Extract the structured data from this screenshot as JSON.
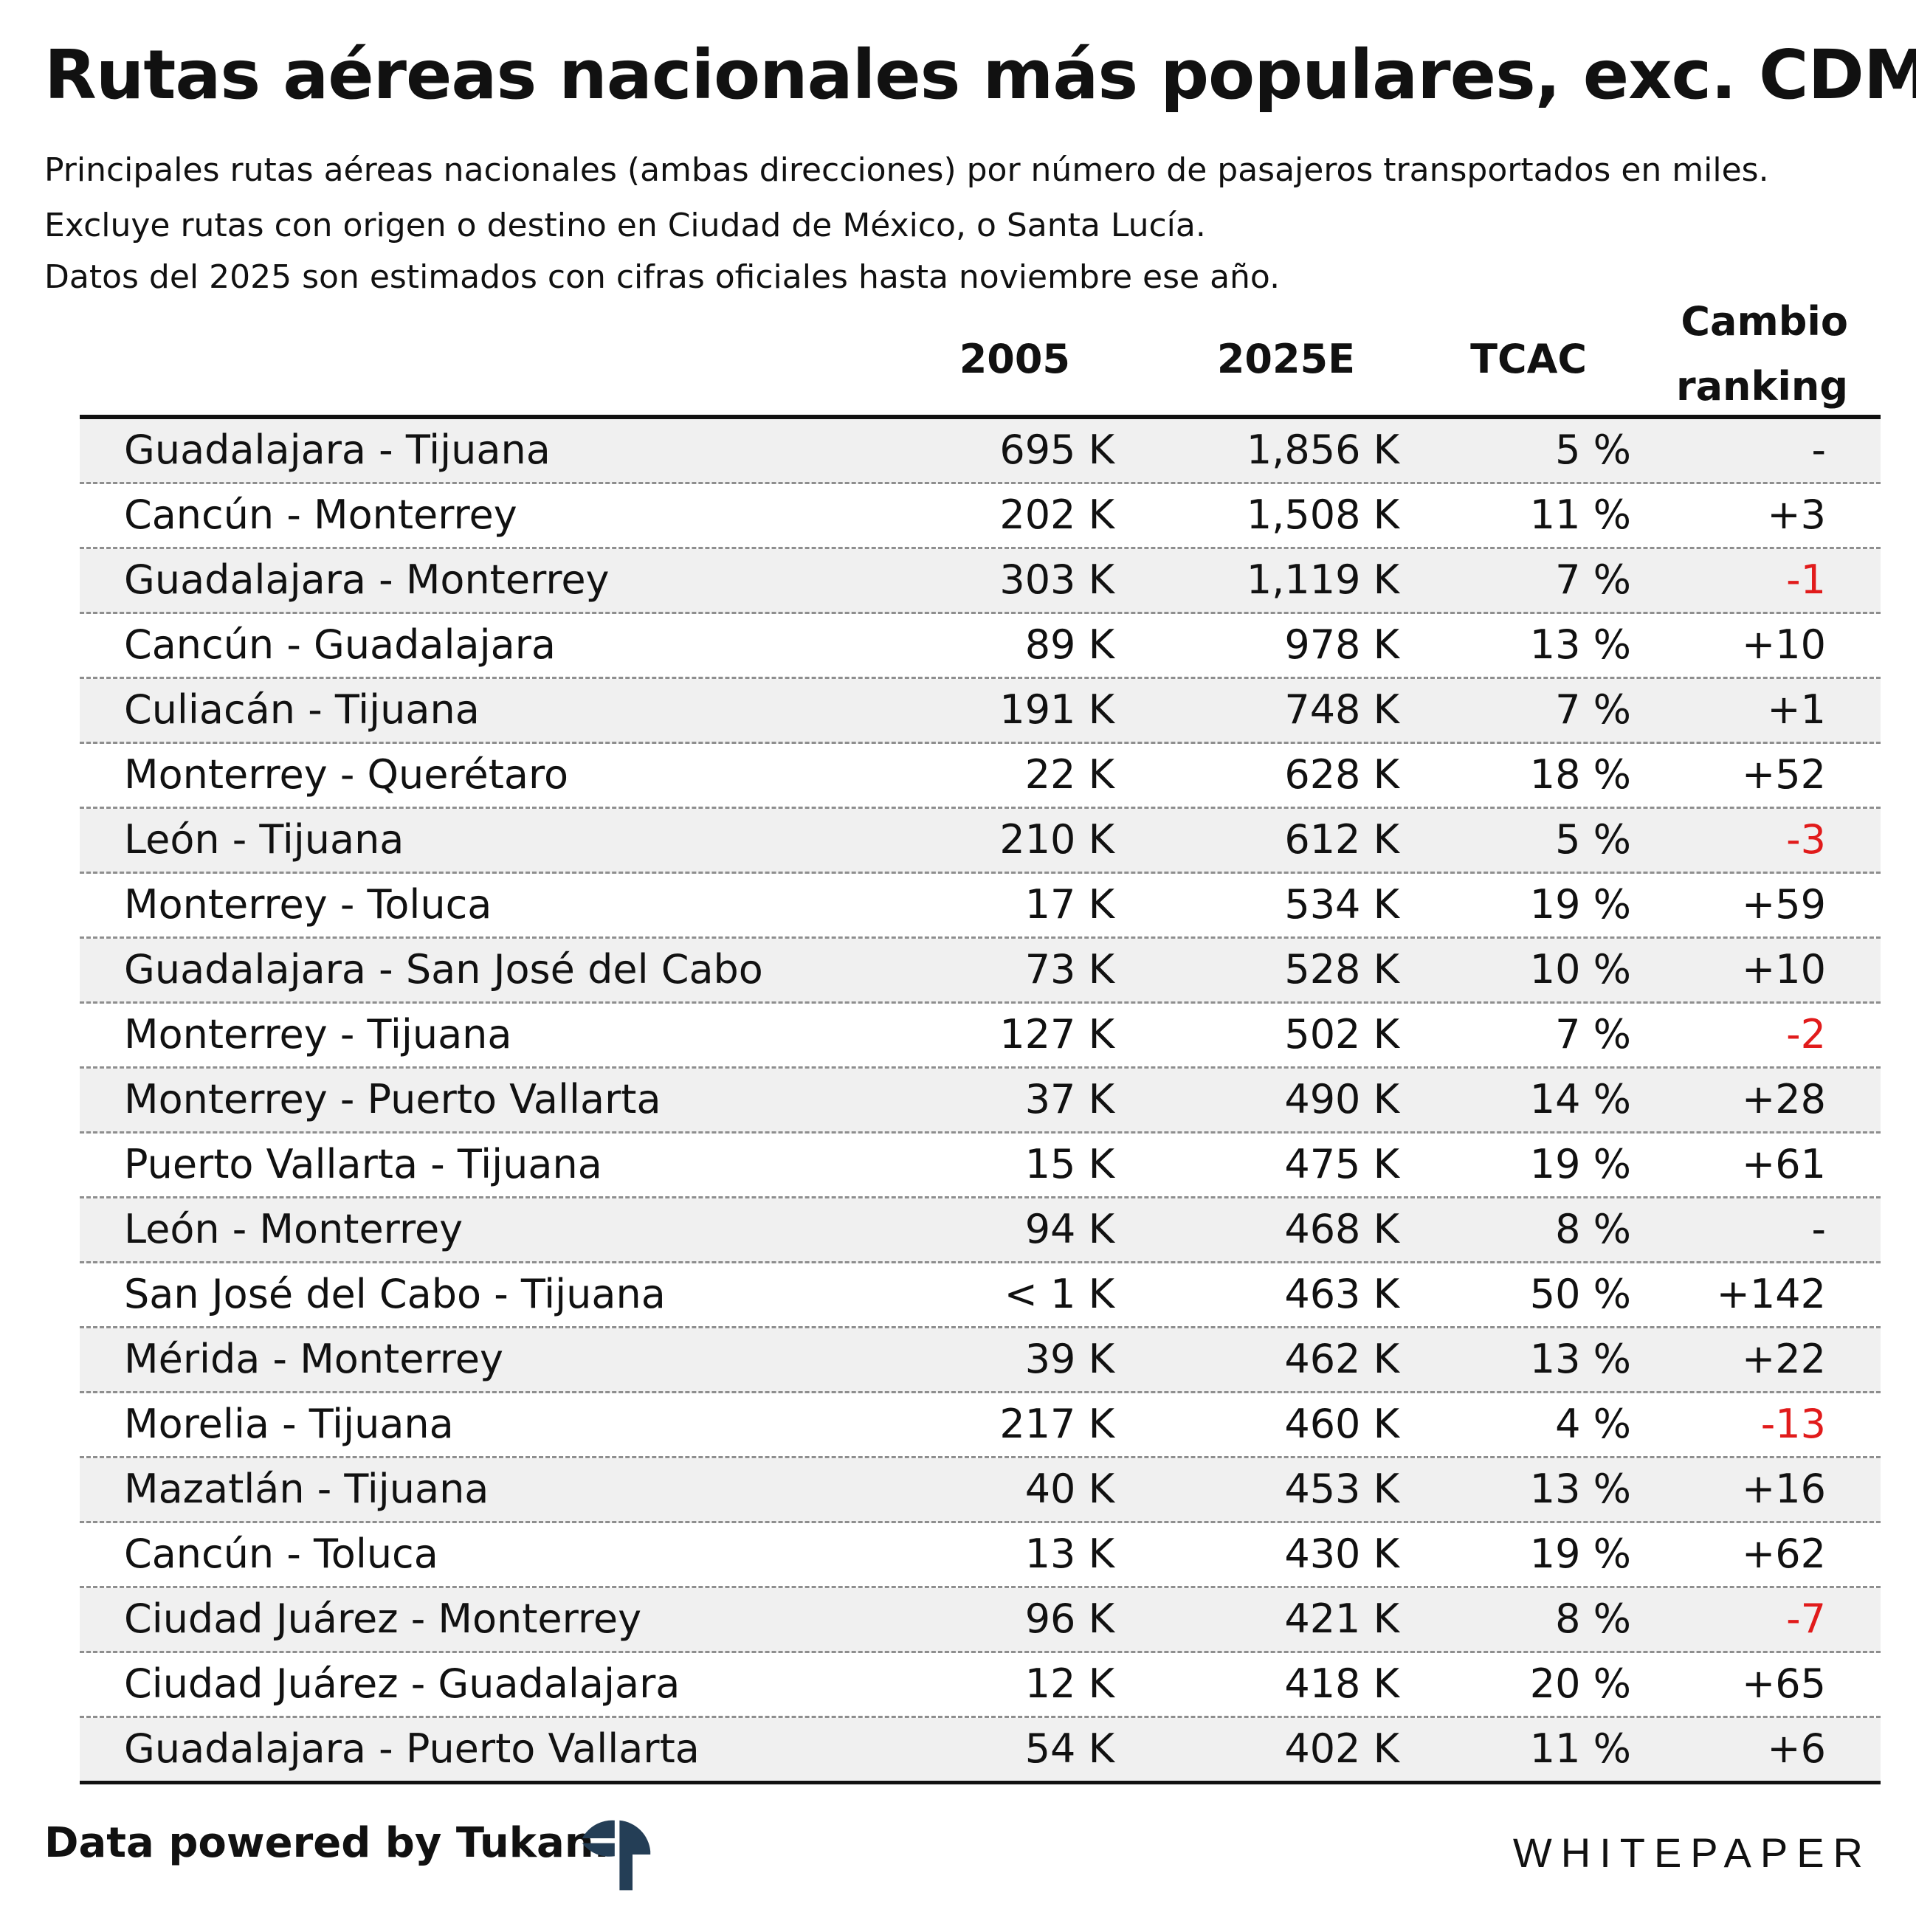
{
  "colors": {
    "negative": "#e11b1b",
    "text": "#111111",
    "shade": "#f0f0f0"
  },
  "chart_data": {
    "type": "table",
    "title": "Rutas aéreas nacionales más populares, exc. CDMX",
    "subtitle": [
      "Principales rutas aéreas nacionales (ambas direcciones) por número de pasajeros transportados en miles.",
      "Excluye rutas con origen o destino en Ciudad de México, o Santa Lucía.",
      "Datos del 2025 son estimados con cifras oficiales hasta noviembre ese año."
    ],
    "columns": {
      "y2005": "2005",
      "y2025": "2025E",
      "tcac": "TCAC",
      "rank_line1": "Cambio",
      "rank_line2": "ranking"
    },
    "rows": [
      {
        "route": "Guadalajara - Tijuana",
        "y2005": "695 K",
        "y2025": "1,856 K",
        "tcac": "5 %",
        "rank": "-",
        "negative": false
      },
      {
        "route": "Cancún - Monterrey",
        "y2005": "202 K",
        "y2025": "1,508 K",
        "tcac": "11 %",
        "rank": "+3",
        "negative": false
      },
      {
        "route": "Guadalajara - Monterrey",
        "y2005": "303 K",
        "y2025": "1,119 K",
        "tcac": "7 %",
        "rank": "-1",
        "negative": true
      },
      {
        "route": "Cancún - Guadalajara",
        "y2005": "89 K",
        "y2025": "978 K",
        "tcac": "13 %",
        "rank": "+10",
        "negative": false
      },
      {
        "route": "Culiacán - Tijuana",
        "y2005": "191 K",
        "y2025": "748 K",
        "tcac": "7 %",
        "rank": "+1",
        "negative": false
      },
      {
        "route": "Monterrey - Querétaro",
        "y2005": "22 K",
        "y2025": "628 K",
        "tcac": "18 %",
        "rank": "+52",
        "negative": false
      },
      {
        "route": "León - Tijuana",
        "y2005": "210 K",
        "y2025": "612 K",
        "tcac": "5 %",
        "rank": "-3",
        "negative": true
      },
      {
        "route": "Monterrey - Toluca",
        "y2005": "17 K",
        "y2025": "534 K",
        "tcac": "19 %",
        "rank": "+59",
        "negative": false
      },
      {
        "route": "Guadalajara - San José del Cabo",
        "y2005": "73 K",
        "y2025": "528 K",
        "tcac": "10 %",
        "rank": "+10",
        "negative": false
      },
      {
        "route": "Monterrey - Tijuana",
        "y2005": "127 K",
        "y2025": "502 K",
        "tcac": "7 %",
        "rank": "-2",
        "negative": true
      },
      {
        "route": "Monterrey - Puerto Vallarta",
        "y2005": "37 K",
        "y2025": "490 K",
        "tcac": "14 %",
        "rank": "+28",
        "negative": false
      },
      {
        "route": "Puerto Vallarta - Tijuana",
        "y2005": "15 K",
        "y2025": "475 K",
        "tcac": "19 %",
        "rank": "+61",
        "negative": false
      },
      {
        "route": "León - Monterrey",
        "y2005": "94 K",
        "y2025": "468 K",
        "tcac": "8 %",
        "rank": "-",
        "negative": false
      },
      {
        "route": "San José del Cabo - Tijuana",
        "y2005": "< 1 K",
        "y2025": "463 K",
        "tcac": "50 %",
        "rank": "+142",
        "negative": false
      },
      {
        "route": "Mérida - Monterrey",
        "y2005": "39 K",
        "y2025": "462 K",
        "tcac": "13 %",
        "rank": "+22",
        "negative": false
      },
      {
        "route": "Morelia - Tijuana",
        "y2005": "217 K",
        "y2025": "460 K",
        "tcac": "4 %",
        "rank": "-13",
        "negative": true
      },
      {
        "route": "Mazatlán - Tijuana",
        "y2005": "40 K",
        "y2025": "453 K",
        "tcac": "13 %",
        "rank": "+16",
        "negative": false
      },
      {
        "route": "Cancún - Toluca",
        "y2005": "13 K",
        "y2025": "430 K",
        "tcac": "19 %",
        "rank": "+62",
        "negative": false
      },
      {
        "route": "Ciudad Juárez - Monterrey",
        "y2005": "96 K",
        "y2025": "421 K",
        "tcac": "8 %",
        "rank": "-7",
        "negative": true
      },
      {
        "route": "Ciudad Juárez - Guadalajara",
        "y2005": "12 K",
        "y2025": "418 K",
        "tcac": "20 %",
        "rank": "+65",
        "negative": false
      },
      {
        "route": "Guadalajara - Puerto Vallarta",
        "y2005": "54 K",
        "y2025": "402 K",
        "tcac": "11 %",
        "rank": "+6",
        "negative": false
      }
    ]
  },
  "footer": {
    "credit": "Data powered by Tukan.",
    "logo_icon": "tukan-logo-icon",
    "brand": "WHITEPAPER"
  }
}
